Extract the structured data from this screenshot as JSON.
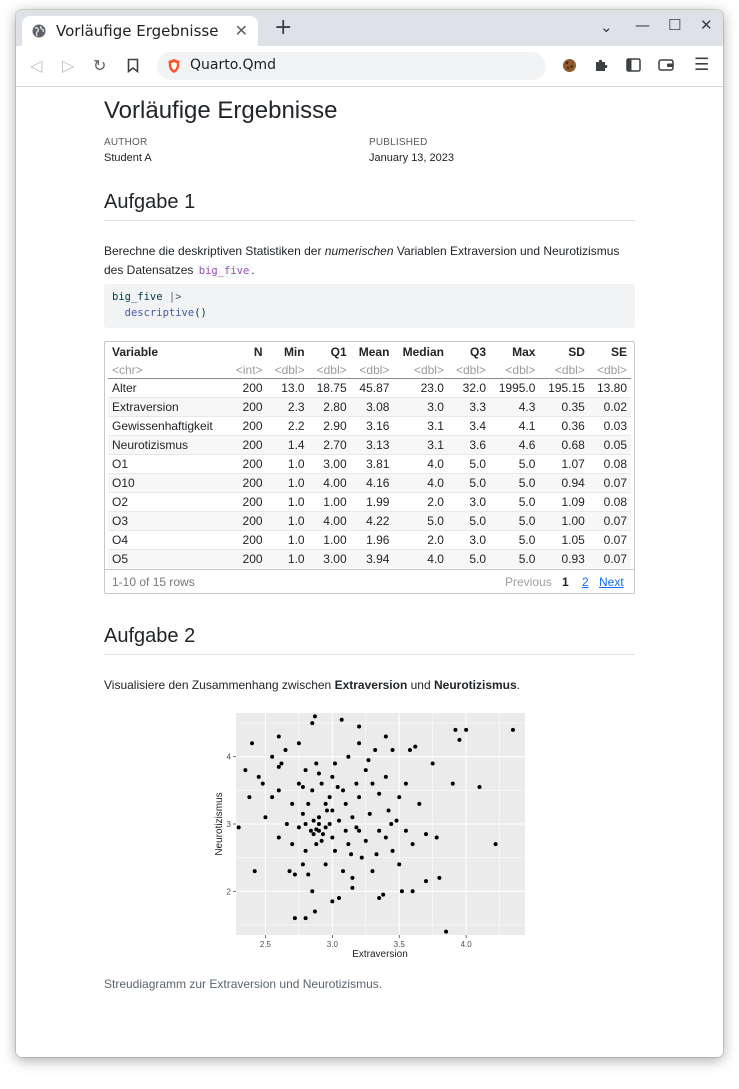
{
  "browser": {
    "tab_title": "Vorläufige Ergebnisse",
    "url": "Quarto.Qmd"
  },
  "doc": {
    "title": "Vorläufige Ergebnisse",
    "author_label": "AUTHOR",
    "author": "Student A",
    "published_label": "PUBLISHED",
    "published": "January 13, 2023"
  },
  "section1": {
    "heading": "Aufgabe 1",
    "text_a": "Berechne die deskriptiven Statistiken der ",
    "text_em": "numerischen",
    "text_b": " Variablen Extraversion und Neurotizismus des Datensatzes ",
    "text_code": "big_five",
    "text_c": ".",
    "code_line1_a": "big_five",
    "code_line1_b": " |>",
    "code_line2_fn": "descriptive",
    "code_line2_paren": "()"
  },
  "table": {
    "headers": [
      "Variable",
      "N",
      "Min",
      "Q1",
      "Mean",
      "Median",
      "Q3",
      "Max",
      "SD",
      "SE"
    ],
    "types": [
      "<chr>",
      "<int>",
      "<dbl>",
      "<dbl>",
      "<dbl>",
      "<dbl>",
      "<dbl>",
      "<dbl>",
      "<dbl>",
      "<dbl>"
    ],
    "rows": [
      [
        "Alter",
        "200",
        "13.0",
        "18.75",
        "45.87",
        "23.0",
        "32.0",
        "1995.0",
        "195.15",
        "13.80"
      ],
      [
        "Extraversion",
        "200",
        "2.3",
        "2.80",
        "3.08",
        "3.0",
        "3.3",
        "4.3",
        "0.35",
        "0.02"
      ],
      [
        "Gewissenhaftigkeit",
        "200",
        "2.2",
        "2.90",
        "3.16",
        "3.1",
        "3.4",
        "4.1",
        "0.36",
        "0.03"
      ],
      [
        "Neurotizismus",
        "200",
        "1.4",
        "2.70",
        "3.13",
        "3.1",
        "3.6",
        "4.6",
        "0.68",
        "0.05"
      ],
      [
        "O1",
        "200",
        "1.0",
        "3.00",
        "3.81",
        "4.0",
        "5.0",
        "5.0",
        "1.07",
        "0.08"
      ],
      [
        "O10",
        "200",
        "1.0",
        "4.00",
        "4.16",
        "4.0",
        "5.0",
        "5.0",
        "0.94",
        "0.07"
      ],
      [
        "O2",
        "200",
        "1.0",
        "1.00",
        "1.99",
        "2.0",
        "3.0",
        "5.0",
        "1.09",
        "0.08"
      ],
      [
        "O3",
        "200",
        "1.0",
        "4.00",
        "4.22",
        "5.0",
        "5.0",
        "5.0",
        "1.00",
        "0.07"
      ],
      [
        "O4",
        "200",
        "1.0",
        "1.00",
        "1.96",
        "2.0",
        "3.0",
        "5.0",
        "1.05",
        "0.07"
      ],
      [
        "O5",
        "200",
        "1.0",
        "3.00",
        "3.94",
        "4.0",
        "5.0",
        "5.0",
        "0.93",
        "0.07"
      ]
    ],
    "row_info": "1-10 of 15 rows",
    "prev": "Previous",
    "page1": "1",
    "page2": "2",
    "next": "Next"
  },
  "section2": {
    "heading": "Aufgabe 2",
    "text_a": "Visualisiere den Zusammenhang zwischen ",
    "text_b1": "Extraversion",
    "text_mid": " und ",
    "text_b2": "Neurotizismus",
    "text_end": ".",
    "caption": "Streudiagramm zur Extraversion und Neurotizismus."
  },
  "chart_data": {
    "type": "scatter",
    "xlabel": "Extraversion",
    "ylabel": "Neurotizismus",
    "xlim": [
      2.28,
      4.44
    ],
    "ylim": [
      1.35,
      4.65
    ],
    "xticks": [
      "2.5",
      "3.0",
      "3.5",
      "4.0"
    ],
    "yticks": [
      "2",
      "3",
      "4"
    ],
    "grid": true,
    "points": [
      [
        2.35,
        3.8
      ],
      [
        2.38,
        3.4
      ],
      [
        2.4,
        4.2
      ],
      [
        2.42,
        2.3
      ],
      [
        2.45,
        3.7
      ],
      [
        2.48,
        3.6
      ],
      [
        2.5,
        3.1
      ],
      [
        2.3,
        2.95
      ],
      [
        2.55,
        3.4
      ],
      [
        2.55,
        4.0
      ],
      [
        2.6,
        2.8
      ],
      [
        2.6,
        3.5
      ],
      [
        2.62,
        3.9
      ],
      [
        2.65,
        4.1
      ],
      [
        2.68,
        2.3
      ],
      [
        2.7,
        2.7
      ],
      [
        2.7,
        3.3
      ],
      [
        2.72,
        2.25
      ],
      [
        2.72,
        1.6
      ],
      [
        2.75,
        3.6
      ],
      [
        2.75,
        4.2
      ],
      [
        2.75,
        2.95
      ],
      [
        2.78,
        2.4
      ],
      [
        2.78,
        3.15
      ],
      [
        2.8,
        3.8
      ],
      [
        2.8,
        2.6
      ],
      [
        2.8,
        3.0
      ],
      [
        2.82,
        3.3
      ],
      [
        2.82,
        2.25
      ],
      [
        2.85,
        4.5
      ],
      [
        2.85,
        2.0
      ],
      [
        2.85,
        3.5
      ],
      [
        2.88,
        3.9
      ],
      [
        2.88,
        2.7
      ],
      [
        2.9,
        3.1
      ],
      [
        2.9,
        2.9
      ],
      [
        2.92,
        3.6
      ],
      [
        2.92,
        2.75
      ],
      [
        2.95,
        3.3
      ],
      [
        2.95,
        2.95
      ],
      [
        2.95,
        2.4
      ],
      [
        2.98,
        3.0
      ],
      [
        2.98,
        3.4
      ],
      [
        3.0,
        2.8
      ],
      [
        3.0,
        3.2
      ],
      [
        3.0,
        3.7
      ],
      [
        3.02,
        2.6
      ],
      [
        3.02,
        3.9
      ],
      [
        3.05,
        3.05
      ],
      [
        3.05,
        1.9
      ],
      [
        3.08,
        3.5
      ],
      [
        3.08,
        2.3
      ],
      [
        3.1,
        2.9
      ],
      [
        3.1,
        3.3
      ],
      [
        3.12,
        4.0
      ],
      [
        3.12,
        2.7
      ],
      [
        3.15,
        3.1
      ],
      [
        3.15,
        2.2
      ],
      [
        3.18,
        3.6
      ],
      [
        3.18,
        2.95
      ],
      [
        3.2,
        3.4
      ],
      [
        3.2,
        4.2
      ],
      [
        3.22,
        2.5
      ],
      [
        3.25,
        3.8
      ],
      [
        3.25,
        2.75
      ],
      [
        3.28,
        3.15
      ],
      [
        3.3,
        3.6
      ],
      [
        3.3,
        2.3
      ],
      [
        3.32,
        4.1
      ],
      [
        3.35,
        2.9
      ],
      [
        3.35,
        3.45
      ],
      [
        3.38,
        1.95
      ],
      [
        3.4,
        2.8
      ],
      [
        3.4,
        3.7
      ],
      [
        3.42,
        3.2
      ],
      [
        3.45,
        2.6
      ],
      [
        3.45,
        4.1
      ],
      [
        3.48,
        3.05
      ],
      [
        3.5,
        2.4
      ],
      [
        3.5,
        3.4
      ],
      [
        3.52,
        2.0
      ],
      [
        3.55,
        2.9
      ],
      [
        3.55,
        3.6
      ],
      [
        3.58,
        4.1
      ],
      [
        3.6,
        2.7
      ],
      [
        3.65,
        3.3
      ],
      [
        3.7,
        2.85
      ],
      [
        3.75,
        3.9
      ],
      [
        3.78,
        2.8
      ],
      [
        3.8,
        2.2
      ],
      [
        3.85,
        1.4
      ],
      [
        3.9,
        3.6
      ],
      [
        3.92,
        4.4
      ],
      [
        3.95,
        4.25
      ],
      [
        4.0,
        4.4
      ],
      [
        4.1,
        3.55
      ],
      [
        4.22,
        2.7
      ],
      [
        4.35,
        4.4
      ],
      [
        2.6,
        3.85
      ],
      [
        2.66,
        3.0
      ],
      [
        2.78,
        3.55
      ],
      [
        2.86,
        2.85
      ],
      [
        2.9,
        3.75
      ],
      [
        2.96,
        3.2
      ],
      [
        3.04,
        3.55
      ],
      [
        3.14,
        2.55
      ],
      [
        3.2,
        2.9
      ],
      [
        3.27,
        3.95
      ],
      [
        3.33,
        2.55
      ],
      [
        3.44,
        3.0
      ],
      [
        3.62,
        4.15
      ],
      [
        2.84,
        2.9
      ],
      [
        2.86,
        3.05
      ],
      [
        2.88,
        2.92
      ],
      [
        2.9,
        3.0
      ],
      [
        2.93,
        2.85
      ],
      [
        2.87,
        1.7
      ],
      [
        3.0,
        1.85
      ],
      [
        2.8,
        1.6
      ],
      [
        3.07,
        4.55
      ],
      [
        2.87,
        4.6
      ],
      [
        3.35,
        1.9
      ],
      [
        3.15,
        2.05
      ],
      [
        2.6,
        4.3
      ],
      [
        3.4,
        4.3
      ],
      [
        3.2,
        4.45
      ],
      [
        3.7,
        2.15
      ],
      [
        3.6,
        2.0
      ]
    ]
  }
}
